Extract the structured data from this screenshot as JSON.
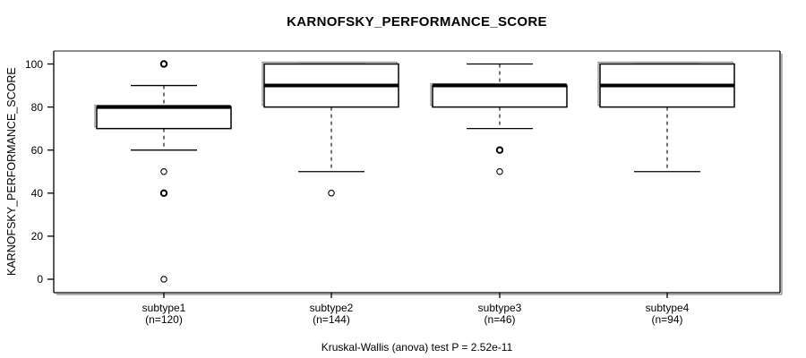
{
  "chart_data": {
    "type": "boxplot",
    "title": "KARNOFSKY_PERFORMANCE_SCORE",
    "ylabel": "KARNOFSKY_PERFORMANCE_SCORE",
    "xlabel": "",
    "ylim": [
      0,
      100
    ],
    "yticks": [
      0,
      20,
      40,
      60,
      80,
      100
    ],
    "grid": false,
    "legend": null,
    "footer": "Kruskal-Wallis (anova) test P = 2.52e-11",
    "groups": [
      {
        "label": "subtype1",
        "n": 120,
        "n_label": "(n=120)",
        "q1": 70,
        "median": 80,
        "q3": 80,
        "whisker_low": 60,
        "whisker_high": 90,
        "outliers": [
          100,
          50,
          40,
          0
        ],
        "bold_outliers": [
          100,
          40
        ]
      },
      {
        "label": "subtype2",
        "n": 144,
        "n_label": "(n=144)",
        "q1": 80,
        "median": 90,
        "q3": 100,
        "whisker_low": 50,
        "whisker_high": 100,
        "outliers": [
          40
        ],
        "bold_outliers": []
      },
      {
        "label": "subtype3",
        "n": 46,
        "n_label": "(n=46)",
        "q1": 80,
        "median": 90,
        "q3": 90,
        "whisker_low": 70,
        "whisker_high": 100,
        "outliers": [
          60,
          50
        ],
        "bold_outliers": [
          60
        ]
      },
      {
        "label": "subtype4",
        "n": 94,
        "n_label": "(n=94)",
        "q1": 80,
        "median": 90,
        "q3": 100,
        "whisker_low": 50,
        "whisker_high": 100,
        "outliers": [],
        "bold_outliers": []
      }
    ],
    "colors": {
      "line": "#000000",
      "frame_top": "#8c8c8c",
      "shadow": "#999999",
      "box_fill": "#ffffff",
      "background": "#ffffff",
      "text": "#000000"
    }
  }
}
